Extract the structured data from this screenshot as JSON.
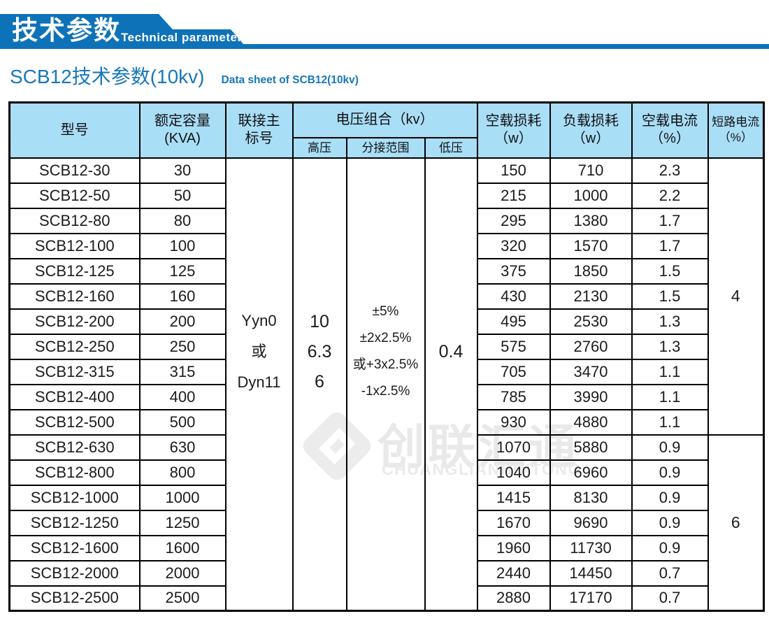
{
  "banner": {
    "title": "技术参数",
    "subtitle": "Technical parameter"
  },
  "page_title": {
    "title": "SCB12技术参数(10kv)",
    "subtitle": "Data sheet of SCB12(10kv)"
  },
  "watermark": {
    "icon": "diamond-logo",
    "text_cn": "创联汇通",
    "text_en": "CHUANGLIANHUITONG"
  },
  "colors": {
    "banner_blue": "#0e72b9",
    "table_header_fill": "#a9def7",
    "title_blue": "#1778bb",
    "table_border": "#000000",
    "watermark_gray": "#e9e9e9"
  },
  "table": {
    "header": {
      "model": "型号",
      "capacity": [
        "额定容量",
        "(KVA)"
      ],
      "connection": [
        "联接主",
        "标号"
      ],
      "voltage_combination": "电压组合（kv）",
      "high_voltage": "高压",
      "tap_range": "分接范围",
      "low_voltage": "低压",
      "no_load_loss": [
        "空载损耗",
        "（w）"
      ],
      "load_loss": [
        "负载损耗",
        "（w）"
      ],
      "no_load_current": [
        "空载电流",
        "（%）"
      ],
      "short_circuit_current": [
        "短路电流",
        "（%）"
      ]
    },
    "merged": {
      "connection": [
        "Yyn0",
        "或",
        "Dyn11"
      ],
      "high_voltage": [
        "10",
        "6.3",
        "6"
      ],
      "tap_range": [
        "±5%",
        "±2x2.5%",
        "或+3x2.5%",
        "-1x2.5%"
      ],
      "low_voltage": "0.4",
      "short_circuit": [
        {
          "value": "4",
          "row_span": 11
        },
        {
          "value": "6",
          "row_span": 7
        }
      ]
    },
    "rows": [
      {
        "model": "SCB12-30",
        "capacity": "30",
        "no_load_loss": "150",
        "load_loss": "710",
        "no_load_current": "2.3"
      },
      {
        "model": "SCB12-50",
        "capacity": "50",
        "no_load_loss": "215",
        "load_loss": "1000",
        "no_load_current": "2.2"
      },
      {
        "model": "SCB12-80",
        "capacity": "80",
        "no_load_loss": "295",
        "load_loss": "1380",
        "no_load_current": "1.7"
      },
      {
        "model": "SCB12-100",
        "capacity": "100",
        "no_load_loss": "320",
        "load_loss": "1570",
        "no_load_current": "1.7"
      },
      {
        "model": "SCB12-125",
        "capacity": "125",
        "no_load_loss": "375",
        "load_loss": "1850",
        "no_load_current": "1.5"
      },
      {
        "model": "SCB12-160",
        "capacity": "160",
        "no_load_loss": "430",
        "load_loss": "2130",
        "no_load_current": "1.5"
      },
      {
        "model": "SCB12-200",
        "capacity": "200",
        "no_load_loss": "495",
        "load_loss": "2530",
        "no_load_current": "1.3"
      },
      {
        "model": "SCB12-250",
        "capacity": "250",
        "no_load_loss": "575",
        "load_loss": "2760",
        "no_load_current": "1.3"
      },
      {
        "model": "SCB12-315",
        "capacity": "315",
        "no_load_loss": "705",
        "load_loss": "3470",
        "no_load_current": "1.1"
      },
      {
        "model": "SCB12-400",
        "capacity": "400",
        "no_load_loss": "785",
        "load_loss": "3990",
        "no_load_current": "1.1"
      },
      {
        "model": "SCB12-500",
        "capacity": "500",
        "no_load_loss": "930",
        "load_loss": "4880",
        "no_load_current": "1.1"
      },
      {
        "model": "SCB12-630",
        "capacity": "630",
        "no_load_loss": "1070",
        "load_loss": "5880",
        "no_load_current": "0.9"
      },
      {
        "model": "SCB12-800",
        "capacity": "800",
        "no_load_loss": "1040",
        "load_loss": "6960",
        "no_load_current": "0.9"
      },
      {
        "model": "SCB12-1000",
        "capacity": "1000",
        "no_load_loss": "1415",
        "load_loss": "8130",
        "no_load_current": "0.9"
      },
      {
        "model": "SCB12-1250",
        "capacity": "1250",
        "no_load_loss": "1670",
        "load_loss": "9690",
        "no_load_current": "0.9"
      },
      {
        "model": "SCB12-1600",
        "capacity": "1600",
        "no_load_loss": "1960",
        "load_loss": "11730",
        "no_load_current": "0.9"
      },
      {
        "model": "SCB12-2000",
        "capacity": "2000",
        "no_load_loss": "2440",
        "load_loss": "14450",
        "no_load_current": "0.7"
      },
      {
        "model": "SCB12-2500",
        "capacity": "2500",
        "no_load_loss": "2880",
        "load_loss": "17170",
        "no_load_current": "0.7"
      }
    ]
  }
}
